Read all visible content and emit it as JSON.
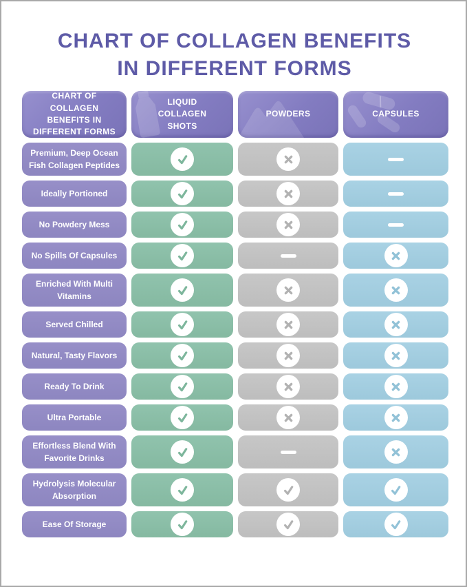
{
  "title": {
    "line1": "CHART OF COLLAGEN BENEFITS",
    "line2": "IN DIFFERENT FORMS"
  },
  "header": {
    "corner_label": "CHART OF COLLAGEN BENEFITS IN DIFFERENT FORMS",
    "columns": [
      {
        "label": "LIQUID COLLAGEN SHOTS",
        "icon": "bottle-icon"
      },
      {
        "label": "POWDERS",
        "icon": "powder-pile-icon"
      },
      {
        "label": "CAPSULES",
        "icon": "capsules-icon"
      }
    ]
  },
  "chart_data": {
    "type": "table",
    "title": "CHART OF COLLAGEN BENEFITS IN DIFFERENT FORMS",
    "columns": [
      "LIQUID COLLAGEN SHOTS",
      "POWDERS",
      "CAPSULES"
    ],
    "rows": [
      {
        "benefit": "Premium, Deep Ocean Fish Collagen Peptides",
        "values": [
          "check",
          "cross",
          "dash"
        ]
      },
      {
        "benefit": "Ideally Portioned",
        "values": [
          "check",
          "cross",
          "dash"
        ]
      },
      {
        "benefit": "No Powdery Mess",
        "values": [
          "check",
          "cross",
          "dash"
        ]
      },
      {
        "benefit": "No Spills Of Capsules",
        "values": [
          "check",
          "dash",
          "cross"
        ]
      },
      {
        "benefit": "Enriched With Multi Vitamins",
        "values": [
          "check",
          "cross",
          "cross"
        ]
      },
      {
        "benefit": "Served Chilled",
        "values": [
          "check",
          "cross",
          "cross"
        ]
      },
      {
        "benefit": "Natural, Tasty Flavors",
        "values": [
          "check",
          "cross",
          "cross"
        ]
      },
      {
        "benefit": "Ready To Drink",
        "values": [
          "check",
          "cross",
          "cross"
        ]
      },
      {
        "benefit": "Ultra Portable",
        "values": [
          "check",
          "cross",
          "cross"
        ]
      },
      {
        "benefit": "Effortless Blend With Favorite Drinks",
        "values": [
          "check",
          "dash",
          "cross"
        ]
      },
      {
        "benefit": "Hydrolysis Molecular Absorption",
        "values": [
          "check",
          "check",
          "check"
        ]
      },
      {
        "benefit": "Ease Of Storage",
        "values": [
          "check",
          "check",
          "check"
        ]
      }
    ],
    "symbol_legend": {
      "check": "yes / included",
      "cross": "no / not included",
      "dash": "not applicable"
    }
  },
  "colors": {
    "title_text": "#5e5ba7",
    "header_purple": "#827bc0",
    "row_label_purple": "#918ac3",
    "liquid_green": "#8abda5",
    "powders_gray": "#c2c2c2",
    "capsules_blue": "#a3cde0",
    "symbol_white": "#ffffff"
  }
}
